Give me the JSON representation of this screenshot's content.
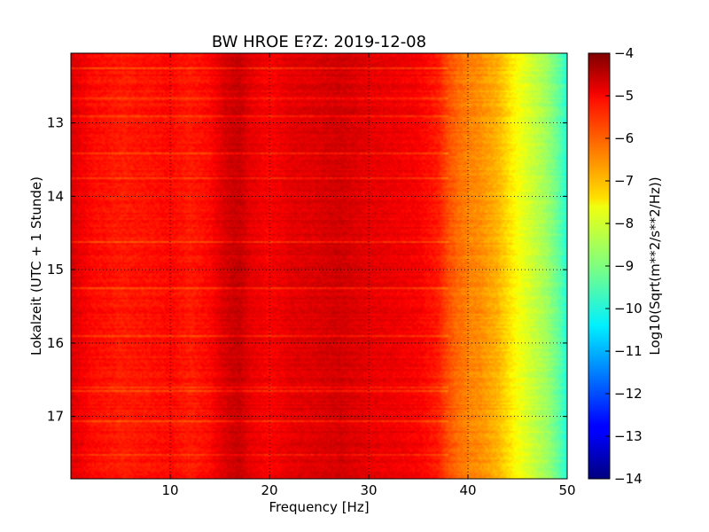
{
  "chart_data": {
    "type": "heatmap",
    "title": "BW HROE E?Z: 2019-12-08",
    "xlabel": "Frequency [Hz]",
    "ylabel": "Lokalzeit (UTC + 1 Stunde)",
    "xlim": [
      0,
      50
    ],
    "ylim": [
      12.05,
      17.85
    ],
    "x_ticks": [
      {
        "value": 10,
        "label": "10"
      },
      {
        "value": 20,
        "label": "20"
      },
      {
        "value": 30,
        "label": "30"
      },
      {
        "value": 40,
        "label": "40"
      },
      {
        "value": 50,
        "label": "50"
      }
    ],
    "y_ticks": [
      {
        "value": 13,
        "label": "13"
      },
      {
        "value": 14,
        "label": "14"
      },
      {
        "value": 15,
        "label": "15"
      },
      {
        "value": 16,
        "label": "16"
      },
      {
        "value": 17,
        "label": "17"
      }
    ],
    "y_inverted": true,
    "grid": true,
    "colorbar": {
      "label": "Log10(Sqrt(m**2/s**2/Hz))",
      "range": [
        -14,
        -4
      ],
      "colormap": "jet",
      "ticks": [
        {
          "value": -4,
          "label": "−4"
        },
        {
          "value": -5,
          "label": "−5"
        },
        {
          "value": -6,
          "label": "−6"
        },
        {
          "value": -7,
          "label": "−7"
        },
        {
          "value": -8,
          "label": "−8"
        },
        {
          "value": -9,
          "label": "−9"
        },
        {
          "value": -10,
          "label": "−10"
        },
        {
          "value": -11,
          "label": "−11"
        },
        {
          "value": -12,
          "label": "−12"
        },
        {
          "value": -13,
          "label": "−13"
        },
        {
          "value": -14,
          "label": "−14"
        }
      ]
    },
    "spectrum_profile": {
      "frequency": [
        0,
        2,
        5,
        8,
        10,
        12,
        14,
        15,
        16,
        17,
        18,
        20,
        22,
        25,
        27,
        30,
        33,
        35,
        37,
        38,
        39,
        40,
        41,
        42,
        43,
        44,
        45,
        46,
        47,
        48,
        49,
        50
      ],
      "value": [
        -4.9,
        -5.3,
        -5.5,
        -5.4,
        -5.3,
        -5.5,
        -5.3,
        -5.0,
        -4.8,
        -4.7,
        -5.0,
        -5.2,
        -5.0,
        -4.9,
        -4.8,
        -5.0,
        -5.1,
        -5.2,
        -5.5,
        -6.0,
        -6.3,
        -6.5,
        -6.6,
        -6.8,
        -7.0,
        -7.4,
        -7.8,
        -8.1,
        -8.4,
        -8.7,
        -9.2,
        -9.9
      ]
    },
    "bright_band_times": [
      12.25,
      12.65,
      12.9,
      13.4,
      13.75,
      14.6,
      15.25,
      15.9,
      16.6,
      16.65,
      17.05,
      17.5
    ]
  }
}
